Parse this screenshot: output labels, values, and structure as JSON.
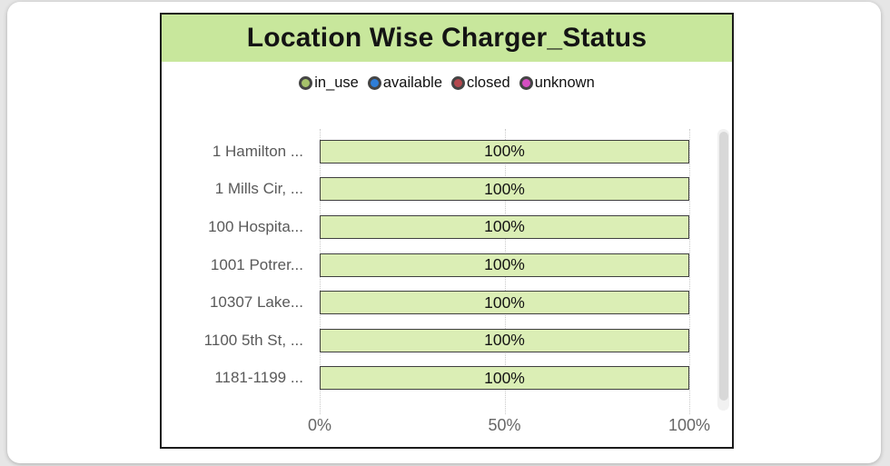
{
  "chart_data": {
    "type": "bar",
    "orientation": "horizontal",
    "stacked": true,
    "title": "Location Wise Charger_Status",
    "title_background": "#c8e79c",
    "categories": [
      "1 Hamilton ...",
      "1 Mills Cir, ...",
      "100 Hospita...",
      "1001 Potrer...",
      "10307 Lake...",
      "1100 5th St, ...",
      "1181-1199 ..."
    ],
    "series": [
      {
        "name": "in_use",
        "color": "#dbeeb5",
        "values": [
          100,
          100,
          100,
          100,
          100,
          100,
          100
        ]
      }
    ],
    "bar_labels": [
      "100%",
      "100%",
      "100%",
      "100%",
      "100%",
      "100%",
      "100%"
    ],
    "legend": [
      {
        "label": "in_use",
        "color": "#a6c26b"
      },
      {
        "label": "available",
        "color": "#2f7ed8"
      },
      {
        "label": "closed",
        "color": "#b4484e"
      },
      {
        "label": "unknown",
        "color": "#d54fc2"
      }
    ],
    "x_ticks": [
      "0%",
      "50%",
      "100%"
    ],
    "xlabel": "",
    "ylabel": "",
    "xlim": [
      0,
      100
    ],
    "grid": "dotted-vertical",
    "legend_position": "top"
  }
}
